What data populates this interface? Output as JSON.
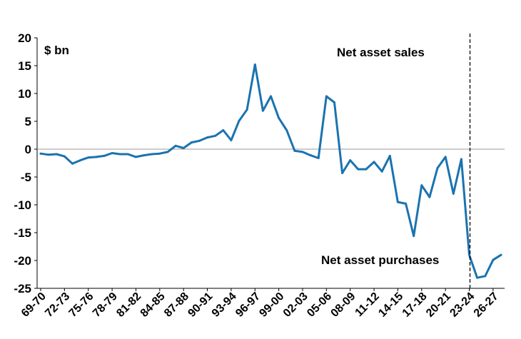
{
  "chart_data": {
    "type": "line",
    "unit_label": "$ bn",
    "annotations": {
      "top": "Net asset sales",
      "bottom": "Net asset purchases"
    },
    "divider_after": "23-24",
    "ylim": [
      -25,
      20
    ],
    "yticks": [
      20,
      15,
      10,
      5,
      0,
      -5,
      -10,
      -15,
      -20,
      -25
    ],
    "ytick_labels": [
      "20",
      "15",
      "10",
      "5",
      "0",
      "-5",
      "-10",
      "-15",
      "-20",
      "-25"
    ],
    "xtick_labels": [
      "69-70",
      "72-73",
      "75-76",
      "78-79",
      "81-82",
      "84-85",
      "87-88",
      "90-91",
      "93-94",
      "96-97",
      "99-00",
      "02-03",
      "05-06",
      "08-09",
      "11-12",
      "14-15",
      "17-18",
      "20-21",
      "23-24",
      "26-27"
    ],
    "line_color": "#1a73b0",
    "x": [
      "69-70",
      "70-71",
      "71-72",
      "72-73",
      "73-74",
      "74-75",
      "75-76",
      "76-77",
      "77-78",
      "78-79",
      "79-80",
      "80-81",
      "81-82",
      "82-83",
      "83-84",
      "84-85",
      "85-86",
      "86-87",
      "87-88",
      "88-89",
      "89-90",
      "90-91",
      "91-92",
      "92-93",
      "93-94",
      "94-95",
      "95-96",
      "96-97",
      "97-98",
      "98-99",
      "99-00",
      "00-01",
      "01-02",
      "02-03",
      "03-04",
      "04-05",
      "05-06",
      "06-07",
      "07-08",
      "08-09",
      "09-10",
      "10-11",
      "11-12",
      "12-13",
      "13-14",
      "14-15",
      "15-16",
      "16-17",
      "17-18",
      "18-19",
      "19-20",
      "20-21",
      "21-22",
      "22-23",
      "23-24",
      "24-25",
      "25-26",
      "26-27",
      "27-28"
    ],
    "values": [
      -0.8,
      -1.0,
      -0.9,
      -1.3,
      -2.6,
      -2.0,
      -1.5,
      -1.4,
      -1.2,
      -0.7,
      -0.9,
      -0.9,
      -1.4,
      -1.1,
      -0.9,
      -0.8,
      -0.5,
      0.6,
      0.2,
      1.2,
      1.5,
      2.1,
      2.4,
      3.4,
      1.6,
      5.1,
      7.1,
      15.2,
      6.9,
      9.5,
      5.6,
      3.4,
      -0.3,
      -0.5,
      -1.1,
      -1.6,
      9.5,
      8.4,
      -4.3,
      -2.0,
      -3.6,
      -3.6,
      -2.3,
      -4.0,
      -1.2,
      -9.5,
      -9.8,
      -15.6,
      -6.5,
      -8.6,
      -3.4,
      -1.4,
      -8.0,
      -1.8,
      -19.0,
      -23.1,
      -22.8,
      -19.9,
      -19.0
    ]
  }
}
